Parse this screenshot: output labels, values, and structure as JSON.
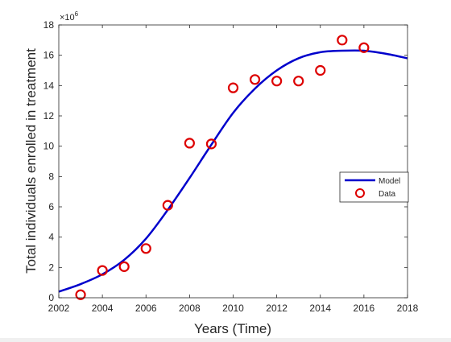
{
  "chart_data": {
    "type": "line",
    "title": "",
    "xlabel": "Years (Time)",
    "ylabel": "Total individuals enrolled in treatment",
    "y_exponent_label": "×10",
    "y_exponent_power": "6",
    "xlim": [
      2002,
      2018
    ],
    "ylim": [
      0,
      18
    ],
    "xticks": [
      2002,
      2004,
      2006,
      2008,
      2010,
      2012,
      2014,
      2016,
      2018
    ],
    "yticks": [
      0,
      2,
      4,
      6,
      8,
      10,
      12,
      14,
      16,
      18
    ],
    "grid": false,
    "legend_position": "right",
    "series": [
      {
        "name": "Model",
        "type": "line",
        "color": "#0000cc",
        "x": [
          2002,
          2003,
          2004,
          2005,
          2006,
          2007,
          2008,
          2009,
          2010,
          2011,
          2012,
          2013,
          2014,
          2015,
          2016,
          2017,
          2018
        ],
        "y": [
          0.4,
          0.9,
          1.55,
          2.5,
          3.9,
          5.8,
          7.9,
          10.1,
          12.2,
          13.8,
          15.0,
          15.8,
          16.2,
          16.3,
          16.3,
          16.1,
          15.8
        ]
      },
      {
        "name": "Data",
        "type": "scatter",
        "color": "#dd0000",
        "marker": "circle",
        "x": [
          2003,
          2004,
          2005,
          2006,
          2007,
          2008,
          2009,
          2010,
          2011,
          2012,
          2013,
          2014,
          2015,
          2016
        ],
        "y": [
          0.2,
          1.8,
          2.05,
          3.25,
          6.1,
          10.2,
          10.15,
          13.85,
          14.4,
          14.3,
          14.3,
          15.0,
          17.0,
          16.5
        ]
      }
    ]
  }
}
